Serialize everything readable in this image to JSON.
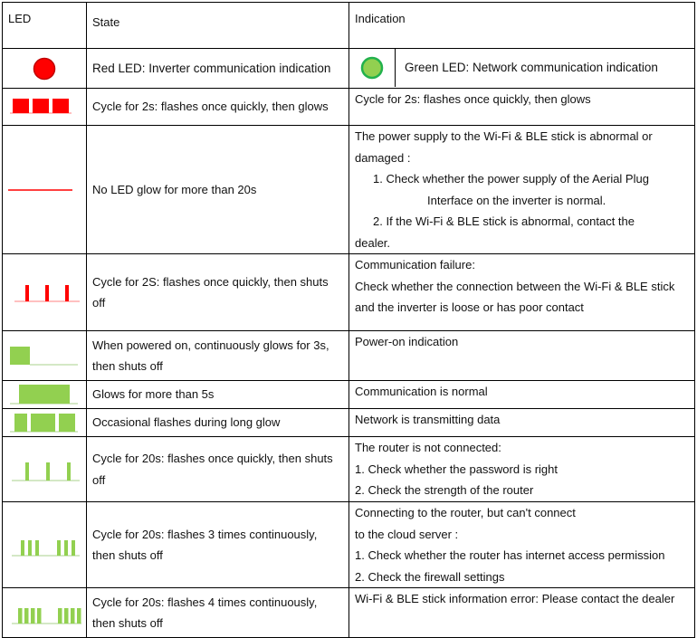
{
  "header": {
    "led": "LED",
    "state": "State",
    "indication": "Indication"
  },
  "colors": {
    "red": "#ff0000",
    "green": "#92d050",
    "green_border": "#22b14c"
  },
  "legend": {
    "red_label": "Red LED: Inverter communication indication",
    "green_label": "Green LED: Network communication indication"
  },
  "rows": [
    {
      "icon": "red-three-blocks-icon",
      "state": [
        "Cycle for 2s: flashes once quickly, then glows"
      ],
      "indication": [
        "Cycle for 2s: flashes once quickly, then glows"
      ]
    },
    {
      "icon": "red-flat-line-icon",
      "state": [
        "No LED glow for more than 20s"
      ],
      "indication": [
        "The power supply to the Wi-Fi & BLE stick is abnormal or",
        "damaged :",
        "1.    Check whether the power supply of the Aerial Plug",
        "Interface on the inverter is normal.",
        "2.    If the Wi-Fi & BLE stick is abnormal, contact the",
        "dealer."
      ]
    },
    {
      "icon": "red-three-pulses-icon",
      "state": [
        "Cycle for 2S: flashes once quickly, then shuts",
        "off"
      ],
      "indication": [
        "Communication failure:",
        "Check whether the connection between the Wi-Fi & BLE stick",
        "and the inverter is loose or has poor contact"
      ]
    },
    {
      "icon": "green-single-block-icon",
      "state": [
        "When powered on, continuously glows for 3s,",
        "then shuts off"
      ],
      "indication": [
        "Power-on indication"
      ]
    },
    {
      "icon": "green-long-block-icon",
      "state": [
        "Glows for more than 5s"
      ],
      "indication": [
        "Communication is normal"
      ]
    },
    {
      "icon": "green-gapped-blocks-icon",
      "state": [
        "Occasional flashes during long glow"
      ],
      "indication": [
        "Network is transmitting data"
      ]
    },
    {
      "icon": "green-three-pulses-icon",
      "state": [
        "Cycle for 20s: flashes once quickly, then shuts",
        "off"
      ],
      "indication": [
        "The router is not connected:",
        "1. Check whether the password is right",
        "2. Check the strength of the router"
      ]
    },
    {
      "icon": "green-3x2-pulses-icon",
      "state": [
        "Cycle for 20s: flashes 3 times continuously,",
        "then shuts off"
      ],
      "indication": [
        "Connecting to the router, but can't connect",
        "to the cloud server :",
        "1. Check whether the router has internet access permission",
        "2. Check the firewall settings"
      ]
    },
    {
      "icon": "green-4x2-pulses-icon",
      "state": [
        "Cycle for 20s: flashes 4 times continuously,",
        "then shuts off"
      ],
      "indication": [
        "Wi-Fi & BLE stick information error: Please contact the dealer"
      ]
    }
  ]
}
